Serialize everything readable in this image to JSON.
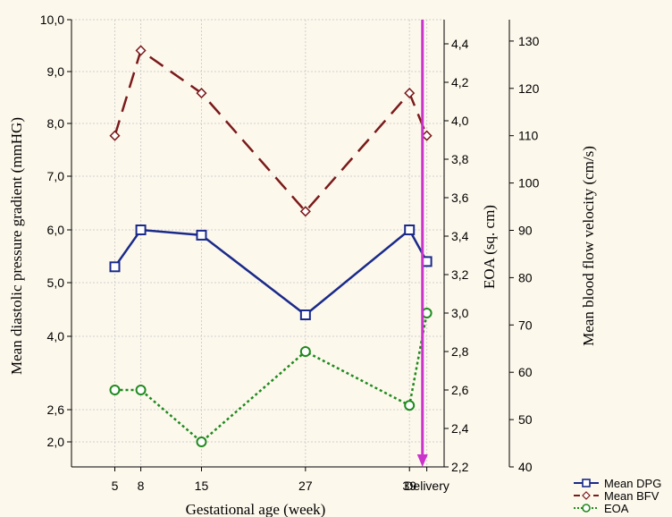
{
  "chart_data": {
    "type": "line",
    "xlabel": "Gestational age (week)",
    "x_ticks": [
      "5",
      "8",
      "15",
      "27",
      "39",
      "Delivery"
    ],
    "x_values": [
      5,
      8,
      15,
      27,
      39,
      41
    ],
    "xlim": [
      0,
      43
    ],
    "grid": true,
    "legend_position": "bottom-right",
    "annotation": {
      "type": "vertical-arrow",
      "x": 40.5,
      "color": "#cc33cc",
      "direction": "down"
    },
    "axes": {
      "left": {
        "label": "Mean diastolic pressure gradient (mmHG)",
        "ylim": [
          1.5,
          10.0
        ],
        "ticks": [
          "2,0",
          "2,6",
          "4,0",
          "5,0",
          "6,0",
          "7,0",
          "8,0",
          "9,0",
          "10,0"
        ],
        "tick_values": [
          2.0,
          2.6,
          4.0,
          5.0,
          6.0,
          7.0,
          8.0,
          9.0,
          10.0
        ]
      },
      "right1": {
        "label": "EOA (sq. cm)",
        "ylim": [
          2.2,
          4.5
        ],
        "ticks": [
          "2,2",
          "2,4",
          "2,6",
          "2,8",
          "3,0",
          "3,2",
          "3,4",
          "3,6",
          "3,8",
          "4,0",
          "4,2",
          "4,4"
        ],
        "tick_values": [
          2.2,
          2.4,
          2.6,
          2.8,
          3.0,
          3.2,
          3.4,
          3.6,
          3.8,
          4.0,
          4.2,
          4.4
        ]
      },
      "right2": {
        "label": "Mean blood flow velocity (cm/s)",
        "ylim": [
          40,
          135
        ],
        "ticks": [
          "40",
          "50",
          "60",
          "70",
          "80",
          "90",
          "100",
          "110",
          "120",
          "130"
        ],
        "tick_values": [
          40,
          50,
          60,
          70,
          80,
          90,
          100,
          110,
          120,
          130
        ]
      }
    },
    "series": [
      {
        "name": "Mean DPG",
        "axis": "left",
        "color": "#1a2a8a",
        "marker": "square",
        "style": "solid",
        "x": [
          5,
          8,
          15,
          27,
          39,
          41
        ],
        "values": [
          5.3,
          6.0,
          5.9,
          4.4,
          6.0,
          5.4
        ]
      },
      {
        "name": "Mean BFV",
        "axis": "right2",
        "color": "#7a1a1a",
        "marker": "diamond",
        "style": "dashed",
        "x": [
          5,
          8,
          15,
          27,
          39,
          41
        ],
        "values": [
          110,
          128,
          119,
          94,
          119,
          110
        ]
      },
      {
        "name": "EOA",
        "axis": "right1",
        "color": "#1f8a1f",
        "marker": "circle",
        "style": "dotted",
        "x": [
          5,
          8,
          15,
          27,
          39,
          41
        ],
        "values": [
          2.6,
          2.6,
          2.33,
          2.8,
          2.52,
          3.0
        ]
      }
    ]
  }
}
